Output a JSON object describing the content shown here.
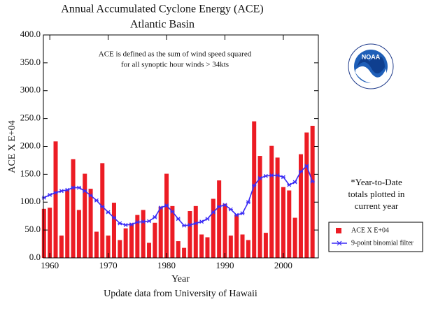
{
  "chart_data": {
    "type": "bar",
    "title": "Annual Accumulated Cyclone Energy (ACE)",
    "subtitle": "Atlantic Basin",
    "x_label": "Year",
    "y_label": "ACE X E+04",
    "annotation": [
      "ACE is defined as the sum of wind speed squared",
      "for all synoptic hour winds > 34kts"
    ],
    "note": [
      "*Year-to-Date",
      "totals plotted in",
      "current year"
    ],
    "footer": "Update data from University of Hawaii",
    "logo_text": "NOAA",
    "x": [
      1959,
      1960,
      1961,
      1962,
      1963,
      1964,
      1965,
      1966,
      1967,
      1968,
      1969,
      1970,
      1971,
      1972,
      1973,
      1974,
      1975,
      1976,
      1977,
      1978,
      1979,
      1980,
      1981,
      1982,
      1983,
      1984,
      1985,
      1986,
      1987,
      1988,
      1989,
      1990,
      1991,
      1992,
      1993,
      1994,
      1995,
      1996,
      1997,
      1998,
      1999,
      2000,
      2001,
      2002,
      2003,
      2004,
      2005
    ],
    "series": [
      {
        "name": "ACE X E+04",
        "color": "#ec1c24",
        "type": "bar",
        "values": [
          88,
          90,
          209,
          40,
          122,
          177,
          86,
          151,
          124,
          47,
          170,
          40,
          99,
          32,
          53,
          62,
          77,
          86,
          27,
          63,
          92,
          151,
          93,
          30,
          18,
          84,
          93,
          42,
          37,
          106,
          139,
          97,
          40,
          78,
          42,
          32,
          245,
          183,
          45,
          201,
          180,
          127,
          121,
          72,
          186,
          225,
          237
        ]
      },
      {
        "name": "9-point binomial filter",
        "color": "#3b2cf5",
        "type": "line",
        "values": [
          108,
          113,
          117,
          120,
          122,
          126,
          126,
          120,
          112,
          103,
          92,
          82,
          72,
          62,
          59,
          60,
          64,
          65,
          66,
          73,
          90,
          94,
          83,
          70,
          58,
          59,
          62,
          65,
          70,
          82,
          92,
          95,
          87,
          77,
          80,
          100,
          130,
          143,
          147,
          148,
          148,
          145,
          131,
          136,
          155,
          165,
          137
        ]
      }
    ],
    "xlim": [
      1958.9,
      2006
    ],
    "xticks": [
      1960,
      1970,
      1980,
      1990,
      2000
    ],
    "ylim": [
      0,
      400
    ],
    "yticks": [
      {
        "value": 0,
        "label": "0.0"
      },
      {
        "value": 50,
        "label": "50.0"
      },
      {
        "value": 100,
        "label": "100.0"
      },
      {
        "value": 150,
        "label": "150.0"
      },
      {
        "value": 200,
        "label": "200.0"
      },
      {
        "value": 250,
        "label": "250.0"
      },
      {
        "value": 300,
        "label": "300.0"
      },
      {
        "value": 350,
        "label": "350.0"
      },
      {
        "value": 400,
        "label": "400.0"
      }
    ],
    "grid": false,
    "legend": "lower right"
  }
}
